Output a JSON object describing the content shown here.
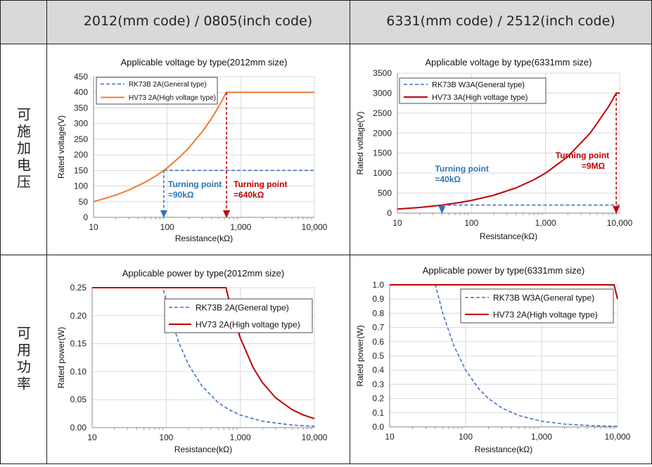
{
  "header": {
    "col1": "2012(mm code) / 0805(inch code)",
    "col2": "6331(mm code) / 2512(inch code)"
  },
  "rows": {
    "voltage_label": "可施加电压",
    "power_label": "可用功率"
  },
  "colors": {
    "general_orange_chart_line": "#ed7d31",
    "general_blue_dashed": "#4472c4",
    "high_voltage_red": "#c00000",
    "annotation_blue": "#2e75b6",
    "annotation_red": "#c00000"
  },
  "chart_data": [
    {
      "id": "v2012",
      "type": "line",
      "title": "Applicable voltage by type(2012mm size)",
      "xlabel": "Resistance(kΩ)",
      "ylabel": "Rated voltage(V)",
      "xscale": "log",
      "xlim": [
        10,
        10000
      ],
      "ylim": [
        0,
        450
      ],
      "yticks": [
        0,
        50,
        100,
        150,
        200,
        250,
        300,
        350,
        400,
        450
      ],
      "yticklabels": [
        "0",
        "50",
        "100",
        "150",
        "200",
        "250",
        "300",
        "350",
        "400",
        "450"
      ],
      "xticks": [
        10,
        100,
        1000,
        10000
      ],
      "xticklabels": [
        "10",
        "100",
        "1,000",
        "10,000"
      ],
      "legend_position": "top-left",
      "series": [
        {
          "name": "RK73B 2A(General type)",
          "style": "dashed",
          "color": "#4472c4",
          "x": [
            90,
            10000
          ],
          "y": [
            150,
            150
          ]
        },
        {
          "name": "HV73 2A(High voltage type)",
          "style": "solid",
          "color": "#ed7d31",
          "x": [
            10,
            20,
            30,
            50,
            70,
            100,
            150,
            200,
            300,
            400,
            500,
            640,
            700,
            1000,
            10000
          ],
          "y": [
            50,
            71,
            87,
            112,
            132,
            158,
            194,
            224,
            274,
            316,
            354,
            400,
            400,
            400,
            400
          ]
        }
      ],
      "annotations": [
        {
          "text1": "Turning point",
          "text2": "=90kΩ",
          "x": 90,
          "color": "#2e75b6"
        },
        {
          "text1": "Turning point",
          "text2": "=640kΩ",
          "x": 640,
          "color": "#c00000"
        }
      ]
    },
    {
      "id": "v6331",
      "type": "line",
      "title": "Applicable voltage by type(6331mm size)",
      "xlabel": "Resistance(kΩ)",
      "ylabel": "Rated voltage(V)",
      "xscale": "log",
      "xlim": [
        10,
        10000
      ],
      "ylim": [
        0,
        3500
      ],
      "yticks": [
        0,
        500,
        1000,
        1500,
        2000,
        2500,
        3000,
        3500
      ],
      "yticklabels": [
        "0",
        "500",
        "1000",
        "1500",
        "2000",
        "2500",
        "3000",
        "3500"
      ],
      "xticks": [
        10,
        100,
        1000,
        10000
      ],
      "xticklabels": [
        "10",
        "100",
        "1,000",
        "10,000"
      ],
      "legend_position": "top-left",
      "series": [
        {
          "name": "RK73B W3A(General type)",
          "style": "dashed",
          "color": "#4472c4",
          "x": [
            40,
            10000
          ],
          "y": [
            200,
            200
          ]
        },
        {
          "name": "HV73 3A(High voltage type)",
          "style": "solid",
          "color": "#c00000",
          "x": [
            10,
            20,
            40,
            70,
            100,
            200,
            400,
            700,
            1000,
            2000,
            4000,
            7000,
            9000,
            10000
          ],
          "y": [
            100,
            141,
            200,
            265,
            316,
            447,
            632,
            837,
            1000,
            1414,
            2000,
            2646,
            3000,
            3000
          ]
        }
      ],
      "annotations": [
        {
          "text1": "Turning point",
          "text2": "=40kΩ",
          "x": 40,
          "color": "#2e75b6"
        },
        {
          "text1": "Turning point",
          "text2": "=9MΩ",
          "x": 9000,
          "color": "#c00000"
        }
      ]
    },
    {
      "id": "p2012",
      "type": "line",
      "title": "Applicable power by type(2012mm size)",
      "xlabel": "Resistance(kΩ)",
      "ylabel": "Rated power(W)",
      "xscale": "log",
      "xlim": [
        10,
        10000
      ],
      "ylim": [
        0,
        0.25
      ],
      "yticks": [
        0,
        0.05,
        0.1,
        0.15,
        0.2,
        0.25
      ],
      "yticklabels": [
        "0.00",
        "0.05",
        "0.10",
        "0.15",
        "0.20",
        "0.25"
      ],
      "xticks": [
        10,
        100,
        1000,
        10000
      ],
      "xticklabels": [
        "10",
        "100",
        "1,000",
        "10,000"
      ],
      "legend_position": "top-right",
      "series": [
        {
          "name": "RK73B 2A(General type)",
          "style": "dashed",
          "color": "#4472c4",
          "x": [
            10,
            90,
            120,
            150,
            200,
            300,
            500,
            700,
            1000,
            2000,
            5000,
            10000
          ],
          "y": [
            0.25,
            0.25,
            0.1875,
            0.15,
            0.1125,
            0.075,
            0.045,
            0.0321,
            0.0225,
            0.01125,
            0.0045,
            0.00225
          ]
        },
        {
          "name": "HV73 2A(High voltage type)",
          "style": "solid",
          "color": "#c00000",
          "x": [
            10,
            640,
            700,
            800,
            1000,
            1500,
            2000,
            3000,
            5000,
            7000,
            10000
          ],
          "y": [
            0.25,
            0.25,
            0.2286,
            0.2,
            0.16,
            0.1067,
            0.08,
            0.0533,
            0.032,
            0.0229,
            0.016
          ]
        }
      ]
    },
    {
      "id": "p6331",
      "type": "line",
      "title": "Applicable power by type(6331mm size)",
      "xlabel": "Resistance(kΩ)",
      "ylabel": "Rated power(W)",
      "xscale": "log",
      "xlim": [
        10,
        10000
      ],
      "ylim": [
        0,
        1.0
      ],
      "yticks": [
        0,
        0.1,
        0.2,
        0.3,
        0.4,
        0.5,
        0.6,
        0.7,
        0.8,
        0.9,
        1.0
      ],
      "yticklabels": [
        "0.0",
        "0.1",
        "0.2",
        "0.3",
        "0.4",
        "0.5",
        "0.6",
        "0.7",
        "0.8",
        "0.9",
        "1.0"
      ],
      "xticks": [
        10,
        100,
        1000,
        10000
      ],
      "xticklabels": [
        "10",
        "100",
        "1,000",
        "10,000"
      ],
      "legend_position": "top-right",
      "series": [
        {
          "name": "RK73B W3A(General type)",
          "style": "dashed",
          "color": "#4472c4",
          "x": [
            10,
            40,
            50,
            70,
            100,
            150,
            200,
            300,
            500,
            1000,
            2000,
            5000,
            10000
          ],
          "y": [
            1.0,
            1.0,
            0.8,
            0.5714,
            0.4,
            0.2667,
            0.2,
            0.1333,
            0.08,
            0.04,
            0.02,
            0.008,
            0.004
          ]
        },
        {
          "name": "HV73 2A(High voltage type)",
          "style": "solid",
          "color": "#c00000",
          "x": [
            10,
            9000,
            10000
          ],
          "y": [
            1.0,
            1.0,
            0.9
          ]
        }
      ]
    }
  ]
}
